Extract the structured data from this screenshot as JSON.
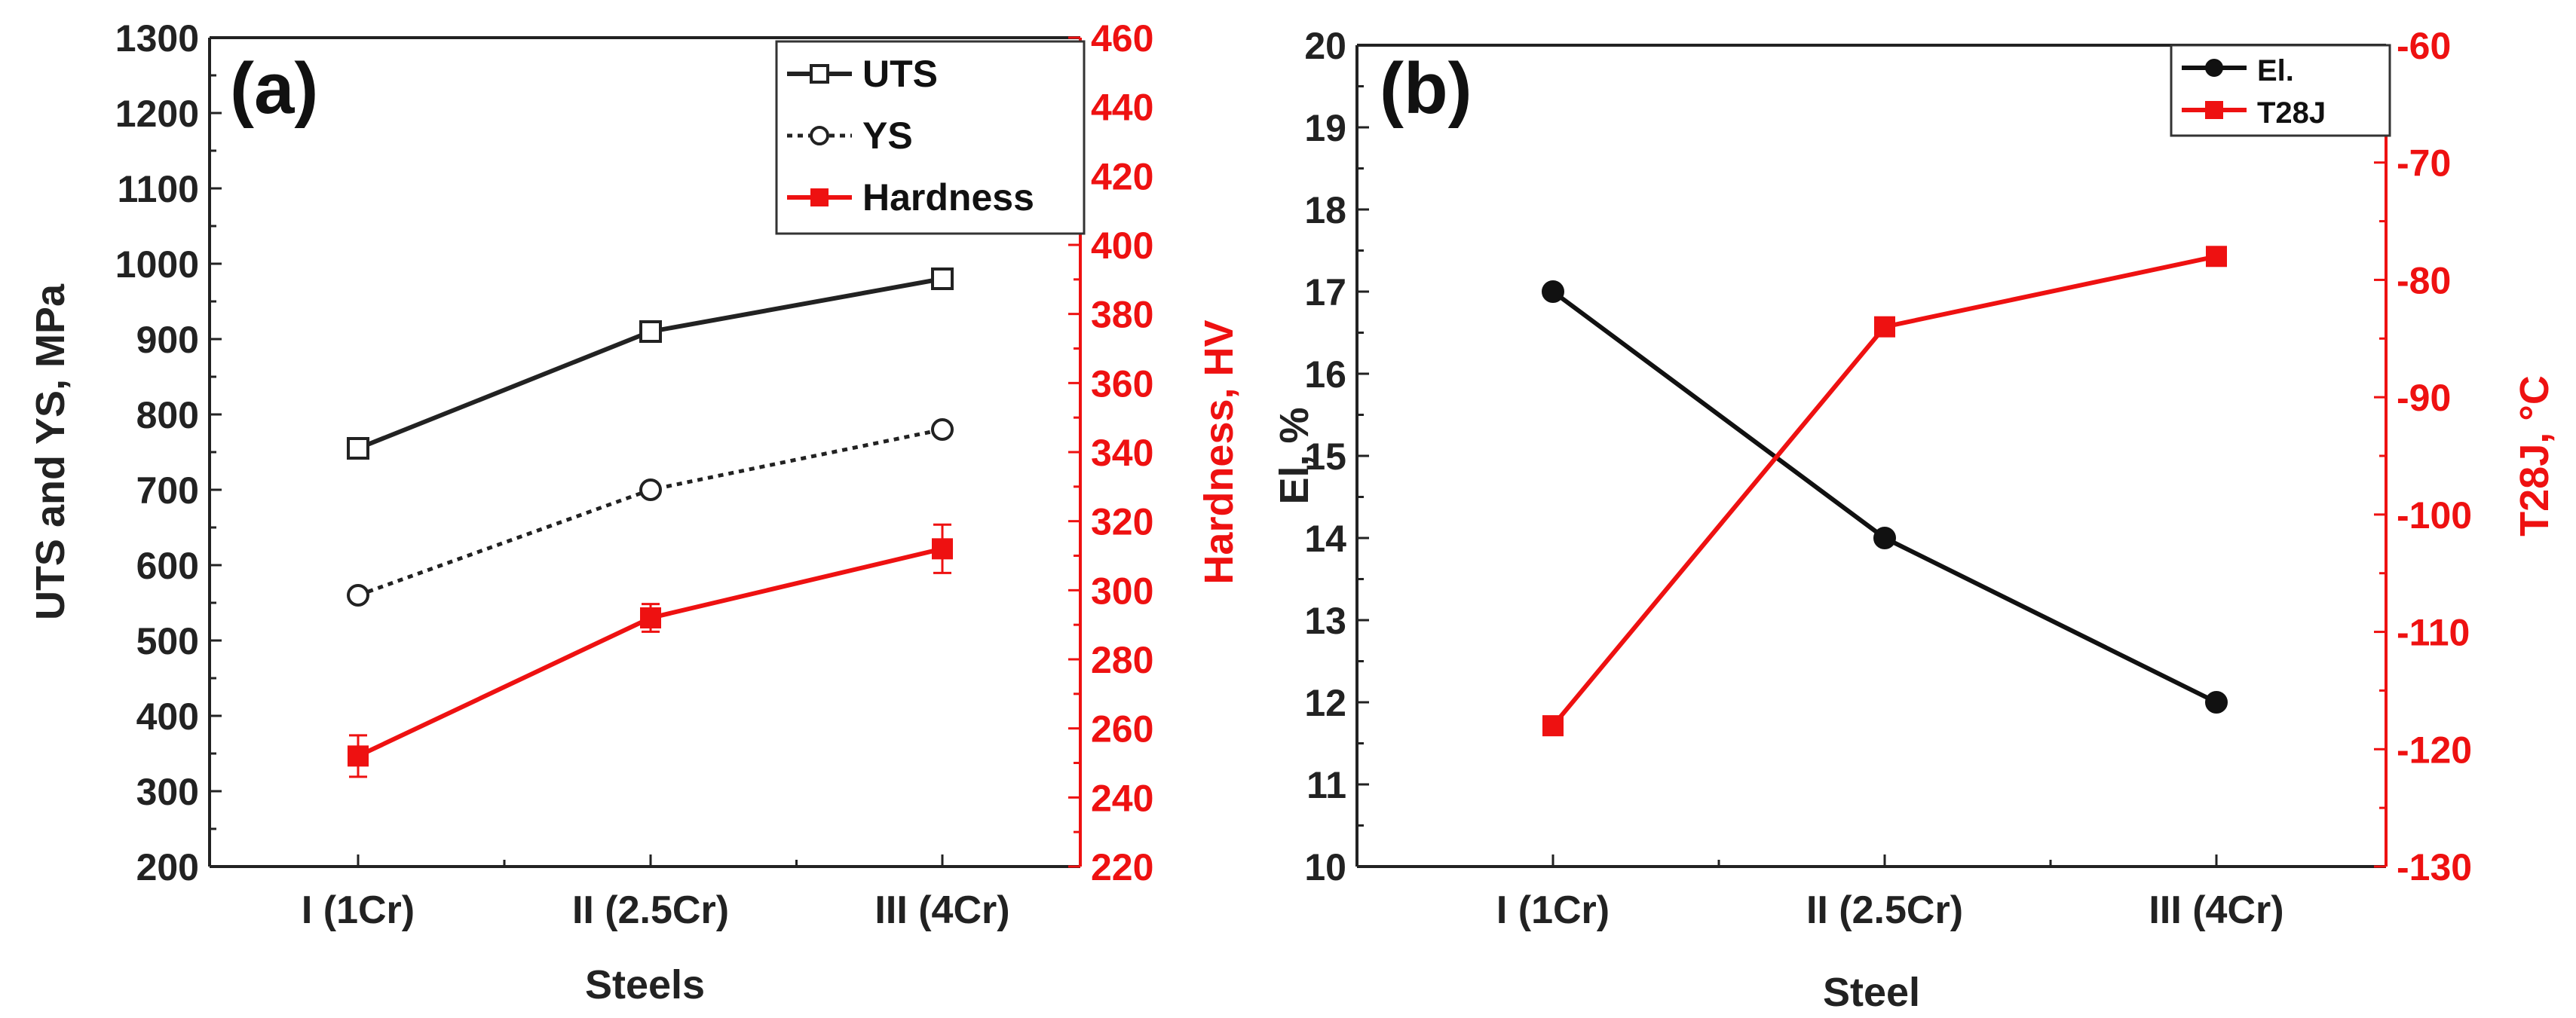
{
  "chart_data": [
    {
      "type": "line",
      "panel_label": "(a)",
      "xlabel": "Steels",
      "ylabel": "UTS and YS, MPa",
      "y2label": "Hardness, HV",
      "categories": [
        "I (1Cr)",
        "II (2.5Cr)",
        "III (4Cr)"
      ],
      "ylim": [
        200,
        1300
      ],
      "y2lim": [
        220,
        460
      ],
      "yticks": [
        "200",
        "300",
        "400",
        "500",
        "600",
        "700",
        "800",
        "900",
        "1000",
        "1100",
        "1200",
        "1300"
      ],
      "y2ticks": [
        "220",
        "240",
        "260",
        "280",
        "300",
        "320",
        "340",
        "360",
        "380",
        "400",
        "420",
        "440",
        "460"
      ],
      "legend_position": "top-right",
      "series": [
        {
          "name": "UTS",
          "axis": "left",
          "values": [
            755,
            910,
            980
          ],
          "color": "#222222",
          "marker": "open-square",
          "line": "solid"
        },
        {
          "name": "YS",
          "axis": "left",
          "values": [
            560,
            700,
            780
          ],
          "color": "#222222",
          "marker": "open-circle",
          "line": "dotted"
        },
        {
          "name": "Hardness",
          "axis": "right",
          "values": [
            252,
            292,
            312
          ],
          "errors": [
            6,
            4,
            7
          ],
          "color": "#ee1111",
          "marker": "filled-square",
          "line": "solid"
        }
      ]
    },
    {
      "type": "line",
      "panel_label": "(b)",
      "xlabel": "Steel",
      "ylabel": "El, %",
      "y2label": "T28J, °C",
      "categories": [
        "I (1Cr)",
        "II (2.5Cr)",
        "III (4Cr)"
      ],
      "ylim": [
        10,
        20
      ],
      "y2lim": [
        -130,
        -60
      ],
      "yticks": [
        "10",
        "11",
        "12",
        "13",
        "14",
        "15",
        "16",
        "17",
        "18",
        "19",
        "20"
      ],
      "y2ticks": [
        "-130",
        "-120",
        "-110",
        "-100",
        "-90",
        "-80",
        "-70",
        "-60"
      ],
      "legend_position": "top-right",
      "series": [
        {
          "name": "El.",
          "axis": "left",
          "values": [
            17,
            14,
            12
          ],
          "color": "#111111",
          "marker": "filled-circle",
          "line": "solid"
        },
        {
          "name": "T28J",
          "axis": "right",
          "values": [
            -118,
            -84,
            -78
          ],
          "color": "#ee1111",
          "marker": "filled-square",
          "line": "solid"
        }
      ]
    }
  ]
}
